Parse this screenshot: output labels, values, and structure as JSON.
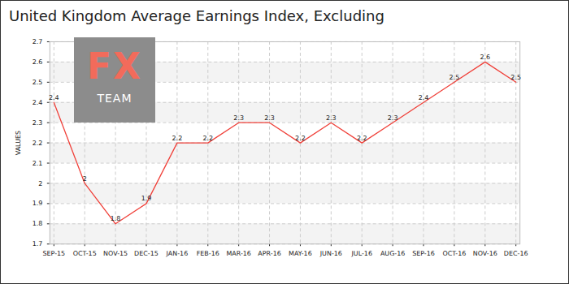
{
  "chart_data": {
    "type": "line",
    "title": "United Kingdom Average Earnings Index, Excluding",
    "y_label": "VALUES",
    "annotations": [
      "FX",
      "TEAM"
    ],
    "categories": [
      "SEP-15",
      "OCT-15",
      "NOV-15",
      "DEC-15",
      "JAN-16",
      "FEB-16",
      "MAR-16",
      "APR-16",
      "MAY-16",
      "JUN-16",
      "JUL-16",
      "AUG-16",
      "SEP-16",
      "OCT-16",
      "NOV-16",
      "DEC-16"
    ],
    "values": [
      2.4,
      2,
      1.8,
      1.9,
      2.2,
      2.2,
      2.3,
      2.3,
      2.2,
      2.3,
      2.2,
      2.3,
      2.4,
      2.5,
      2.6,
      2.5
    ],
    "color": "#f0413a",
    "ylim": [
      1.7,
      2.7
    ],
    "yticks": [
      1.7,
      1.8,
      1.9,
      2,
      2.1,
      2.2,
      2.3,
      2.4,
      2.5,
      2.6,
      2.7
    ],
    "grid": true,
    "data_labels": true
  }
}
